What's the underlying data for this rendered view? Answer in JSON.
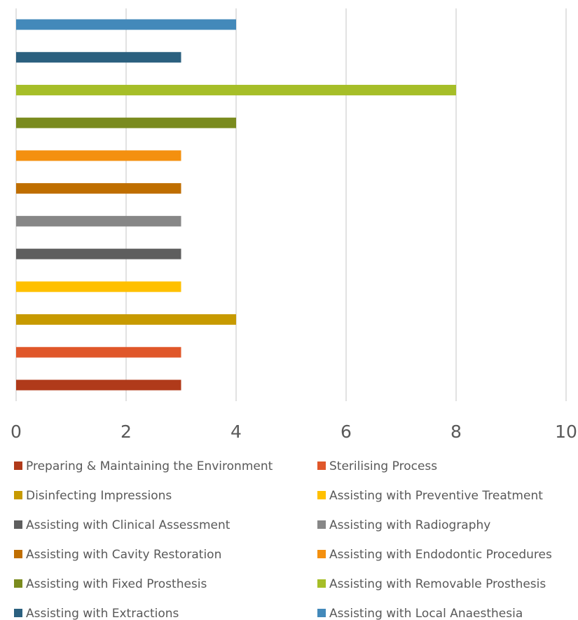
{
  "chart_data": {
    "type": "bar",
    "orientation": "horizontal",
    "title": "",
    "xlabel": "",
    "ylabel": "",
    "xlim": [
      0,
      10
    ],
    "x_ticks": [
      "0",
      "2",
      "4",
      "6",
      "8",
      "10"
    ],
    "grid": "vertical",
    "legend_placement": "bottom",
    "series": [
      {
        "name": "Preparing & Maintaining the Environment",
        "value": 3,
        "color": "#B03A1A"
      },
      {
        "name": "Sterilising Process",
        "value": 3,
        "color": "#E0572A"
      },
      {
        "name": "Disinfecting Impressions",
        "value": 4,
        "color": "#C79A00"
      },
      {
        "name": "Assisting with Preventive Treatment",
        "value": 3,
        "color": "#FFC000"
      },
      {
        "name": "Assisting with Clinical Assessment",
        "value": 3,
        "color": "#5E5E5E"
      },
      {
        "name": "Assisting with Radiography",
        "value": 3,
        "color": "#878787"
      },
      {
        "name": "Assisting with Cavity Restoration",
        "value": 3,
        "color": "#BF6E00"
      },
      {
        "name": "Assisting with Endodontic Procedures",
        "value": 3,
        "color": "#F4900F"
      },
      {
        "name": "Assisting with Fixed Prosthesis",
        "value": 4,
        "color": "#7A8B1E"
      },
      {
        "name": "Assisting with Removable Prosthesis",
        "value": 8,
        "color": "#A6BE28"
      },
      {
        "name": "Assisting with Extractions",
        "value": 3,
        "color": "#2B607F"
      },
      {
        "name": "Assisting with Local Anaesthesia",
        "value": 4,
        "color": "#4389BA"
      }
    ]
  }
}
